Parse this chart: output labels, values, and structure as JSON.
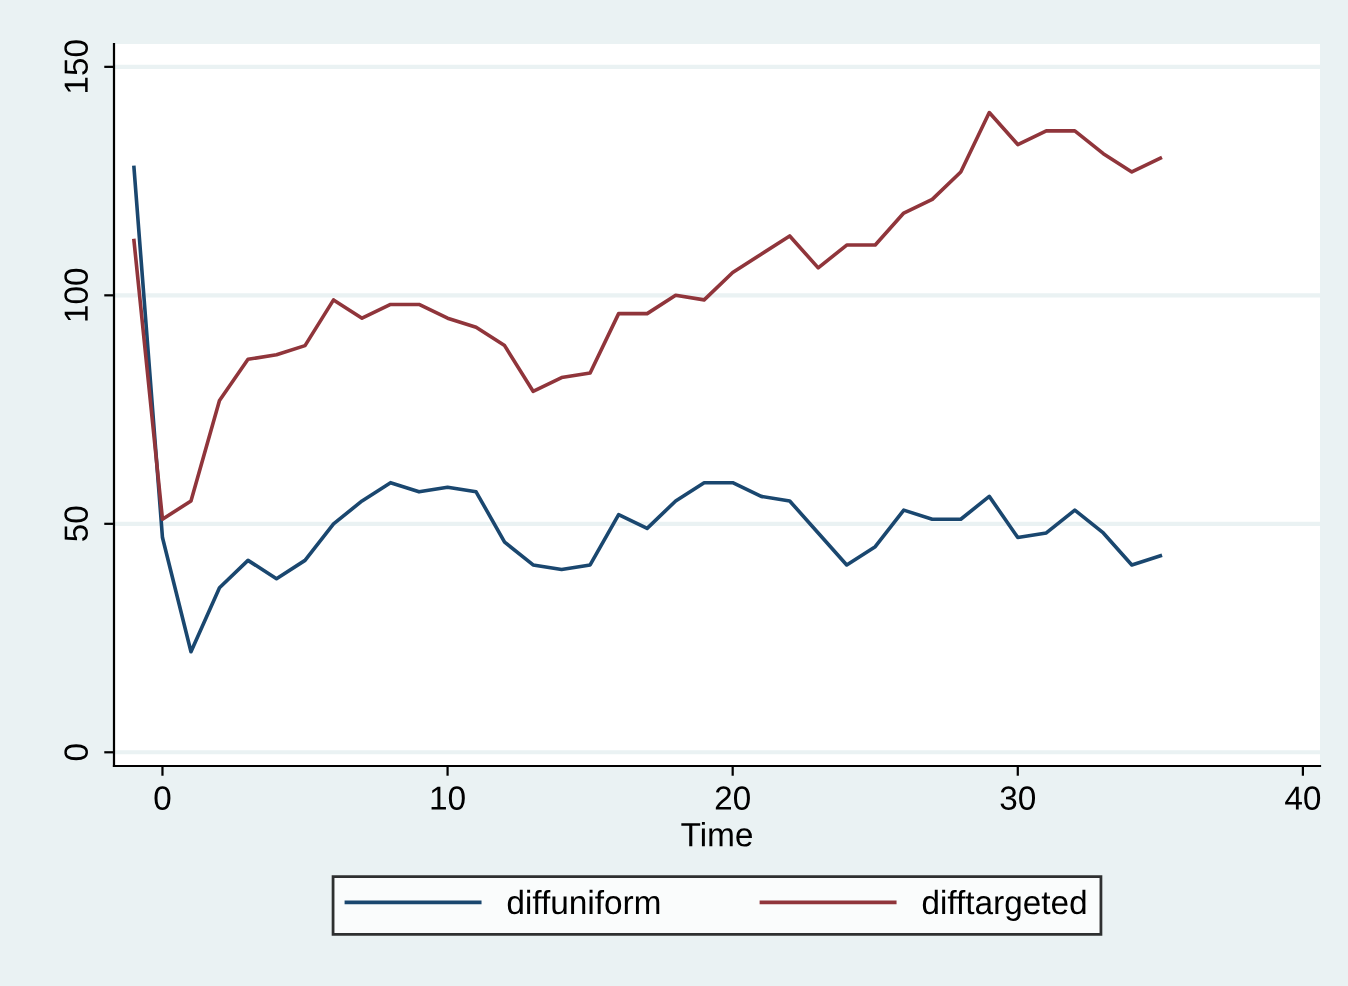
{
  "chart_data": {
    "type": "line",
    "xlabel": "Time",
    "x": [
      -1,
      0,
      1,
      2,
      3,
      4,
      5,
      6,
      7,
      8,
      9,
      10,
      11,
      12,
      13,
      14,
      15,
      16,
      17,
      18,
      19,
      20,
      21,
      22,
      23,
      24,
      25,
      26,
      27,
      28,
      29,
      30,
      31,
      32,
      33,
      34,
      35
    ],
    "series": [
      {
        "name": "diffuniform",
        "color": "#1a476f",
        "values": [
          128,
          47,
          22,
          36,
          42,
          38,
          42,
          50,
          55,
          59,
          57,
          58,
          57,
          46,
          41,
          40,
          41,
          52,
          49,
          55,
          59,
          59,
          56,
          55,
          48,
          41,
          45,
          53,
          51,
          51,
          56,
          47,
          48,
          53,
          48,
          41,
          43
        ]
      },
      {
        "name": "difftargeted",
        "color": "#90353b",
        "values": [
          112,
          51,
          55,
          77,
          86,
          87,
          89,
          99,
          95,
          98,
          98,
          95,
          93,
          89,
          79,
          82,
          83,
          96,
          96,
          100,
          99,
          105,
          109,
          113,
          106,
          111,
          111,
          118,
          121,
          127,
          140,
          133,
          136,
          136,
          131,
          127,
          130
        ]
      }
    ],
    "xlim": [
      -1.7,
      40.6
    ],
    "ylim": [
      -3,
      155
    ],
    "xticks": [
      0,
      10,
      20,
      30,
      40
    ],
    "yticks": [
      0,
      50,
      100,
      150
    ],
    "grid": "y",
    "legend": "bottom",
    "marker": "none",
    "line_style": "solid"
  }
}
